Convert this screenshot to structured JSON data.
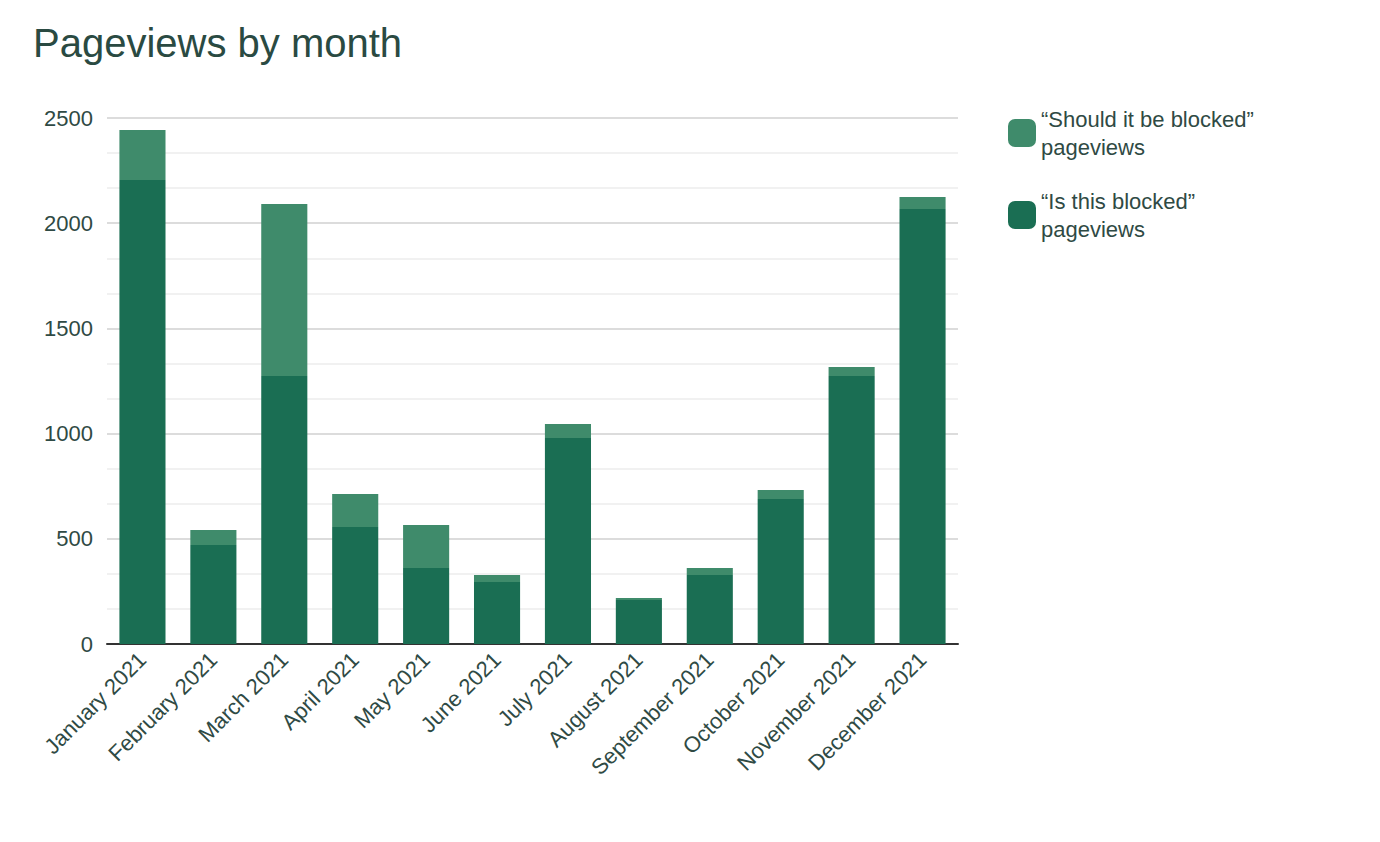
{
  "chart_data": {
    "type": "bar",
    "title": "Pageviews by month",
    "categories": [
      "January 2021",
      "February 2021",
      "March 2021",
      "April 2021",
      "May 2021",
      "June 2021",
      "July 2021",
      "August 2021",
      "September 2021",
      "October 2021",
      "November 2021",
      "December 2021"
    ],
    "series": [
      {
        "name": "“Is this blocked” pageviews",
        "color": "#1a6e53",
        "values": [
          2205,
          470,
          1274,
          556,
          361,
          295,
          979,
          209,
          328,
          689,
          1274,
          2067
        ]
      },
      {
        "name": "“Should it be blocked” pageviews",
        "color": "#3f8b6b",
        "values": [
          238,
          72,
          817,
          157,
          205,
          33,
          67,
          10,
          33,
          43,
          43,
          58
        ]
      }
    ],
    "stacked": true,
    "ylim": [
      0,
      2500
    ],
    "yticks": [
      0,
      500,
      1000,
      1500,
      2000,
      2500
    ],
    "grid": true,
    "legend": "right"
  }
}
